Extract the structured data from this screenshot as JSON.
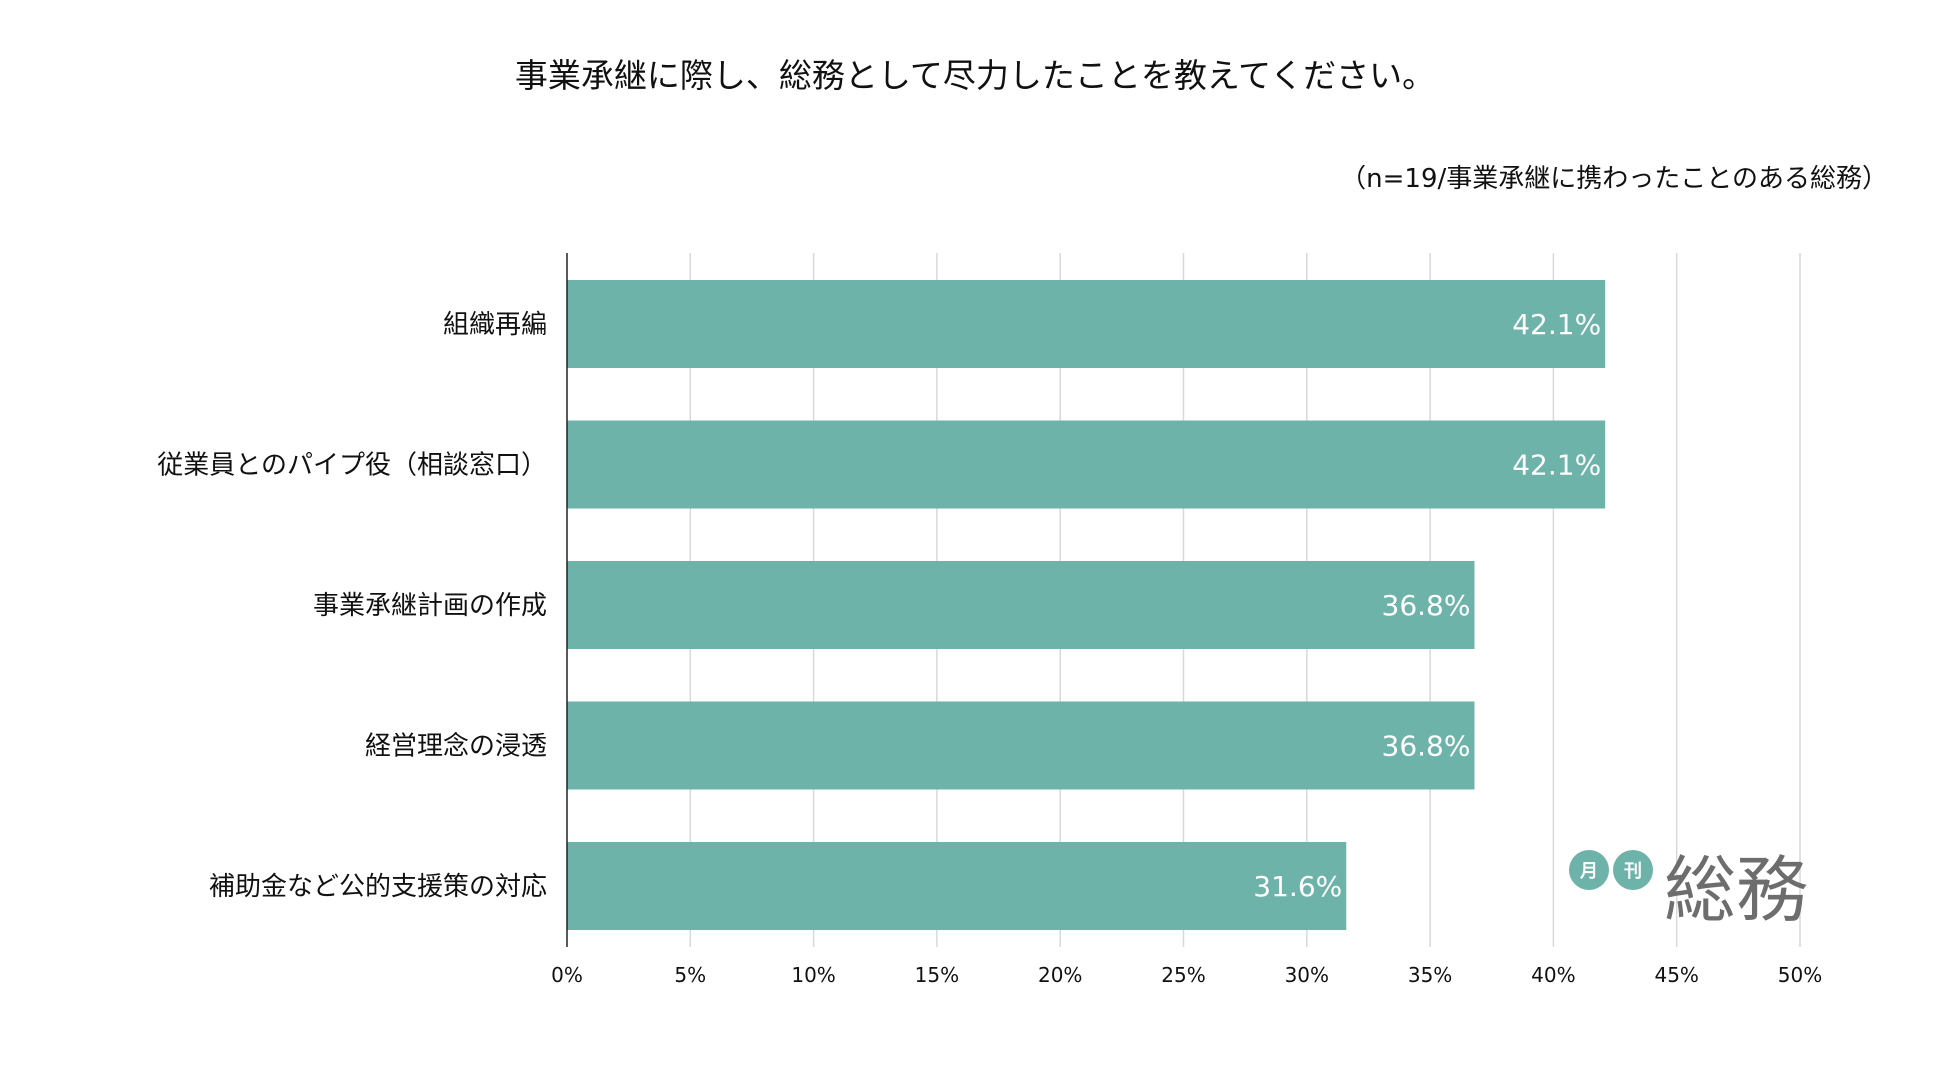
{
  "chart_data": {
    "type": "bar",
    "orientation": "horizontal",
    "title": "事業承継に際し、総務として尽力したことを教えてください。",
    "subtitle": "（n=19/事業承継に携わったことのある総務）",
    "categories": [
      "組織再編",
      "従業員とのパイプ役（相談窓口）",
      "事業承継計画の作成",
      "経営理念の浸透",
      "補助金など公的支援策の対応"
    ],
    "values": [
      42.1,
      42.1,
      36.8,
      36.8,
      31.6
    ],
    "data_labels": [
      "42.1%",
      "42.1%",
      "36.8%",
      "36.8%",
      "31.6%"
    ],
    "xlim": [
      0,
      50
    ],
    "x_ticks": [
      0,
      5,
      10,
      15,
      20,
      25,
      30,
      35,
      40,
      45,
      50
    ],
    "x_tick_labels": [
      "0%",
      "5%",
      "10%",
      "15%",
      "20%",
      "25%",
      "30%",
      "35%",
      "40%",
      "45%",
      "50%"
    ],
    "grid": true,
    "legend": "none",
    "bar_color": "#6db3a9",
    "grid_color": "#d9d9d9",
    "axis_color": "#222222"
  },
  "logo": {
    "badge_1": "月",
    "badge_2": "刊",
    "text": "総務",
    "badge_color": "#6db3a9",
    "text_color": "#6d6d6d"
  }
}
